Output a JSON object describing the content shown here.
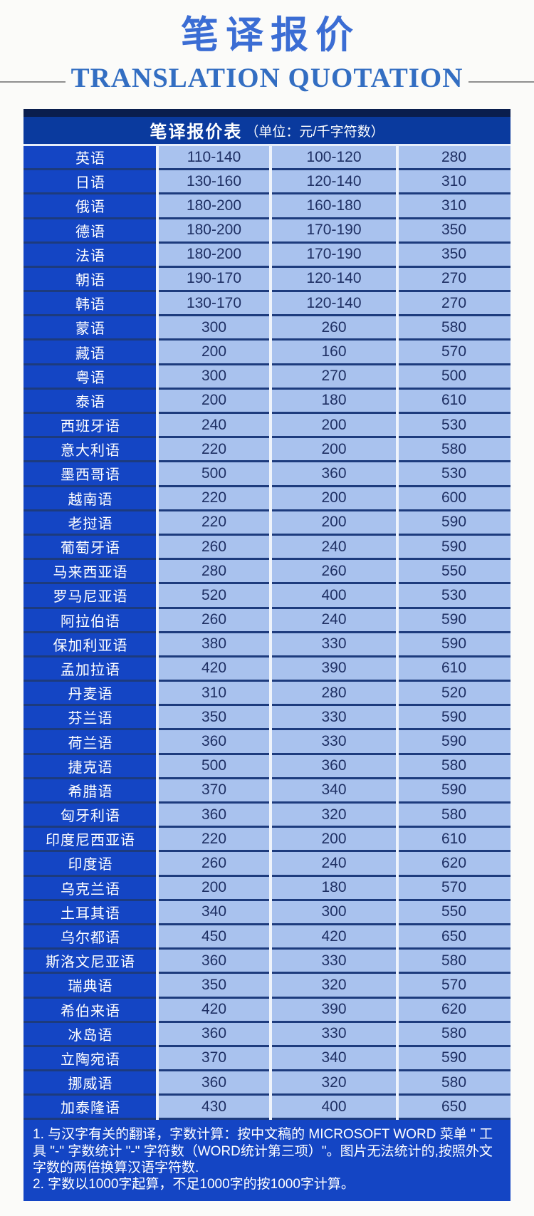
{
  "header": {
    "title": "笔译报价",
    "subtitle": "TRANSLATION QUOTATION"
  },
  "table": {
    "title": "笔译报价表",
    "unit": "（单位：元/千字符数）",
    "rows": [
      {
        "language": "英语",
        "prices": [
          "110-140",
          "100-120",
          "280"
        ]
      },
      {
        "language": "日语",
        "prices": [
          "130-160",
          "120-140",
          "310"
        ]
      },
      {
        "language": "俄语",
        "prices": [
          "180-200",
          "160-180",
          "310"
        ]
      },
      {
        "language": "德语",
        "prices": [
          "180-200",
          "170-190",
          "350"
        ]
      },
      {
        "language": "法语",
        "prices": [
          "180-200",
          "170-190",
          "350"
        ]
      },
      {
        "language": "朝语",
        "prices": [
          "190-170",
          "120-140",
          "270"
        ]
      },
      {
        "language": "韩语",
        "prices": [
          "130-170",
          "120-140",
          "270"
        ]
      },
      {
        "language": "蒙语",
        "prices": [
          "300",
          "260",
          "580"
        ]
      },
      {
        "language": "藏语",
        "prices": [
          "200",
          "160",
          "570"
        ]
      },
      {
        "language": "粤语",
        "prices": [
          "300",
          "270",
          "500"
        ]
      },
      {
        "language": "泰语",
        "prices": [
          "200",
          "180",
          "610"
        ]
      },
      {
        "language": "西班牙语",
        "prices": [
          "240",
          "200",
          "530"
        ]
      },
      {
        "language": "意大利语",
        "prices": [
          "220",
          "200",
          "580"
        ]
      },
      {
        "language": "墨西哥语",
        "prices": [
          "500",
          "360",
          "530"
        ]
      },
      {
        "language": "越南语",
        "prices": [
          "220",
          "200",
          "600"
        ]
      },
      {
        "language": "老挝语",
        "prices": [
          "220",
          "200",
          "590"
        ]
      },
      {
        "language": "葡萄牙语",
        "prices": [
          "260",
          "240",
          "590"
        ]
      },
      {
        "language": "马来西亚语",
        "prices": [
          "280",
          "260",
          "550"
        ]
      },
      {
        "language": "罗马尼亚语",
        "prices": [
          "520",
          "400",
          "530"
        ]
      },
      {
        "language": "阿拉伯语",
        "prices": [
          "260",
          "240",
          "590"
        ]
      },
      {
        "language": "保加利亚语",
        "prices": [
          "380",
          "330",
          "590"
        ]
      },
      {
        "language": "孟加拉语",
        "prices": [
          "420",
          "390",
          "610"
        ]
      },
      {
        "language": "丹麦语",
        "prices": [
          "310",
          "280",
          "520"
        ]
      },
      {
        "language": "芬兰语",
        "prices": [
          "350",
          "330",
          "590"
        ]
      },
      {
        "language": "荷兰语",
        "prices": [
          "360",
          "330",
          "590"
        ]
      },
      {
        "language": "捷克语",
        "prices": [
          "500",
          "360",
          "580"
        ]
      },
      {
        "language": "希腊语",
        "prices": [
          "370",
          "340",
          "590"
        ]
      },
      {
        "language": "匈牙利语",
        "prices": [
          "360",
          "320",
          "580"
        ]
      },
      {
        "language": "印度尼西亚语",
        "prices": [
          "220",
          "200",
          "610"
        ]
      },
      {
        "language": "印度语",
        "prices": [
          "260",
          "240",
          "620"
        ]
      },
      {
        "language": "乌克兰语",
        "prices": [
          "200",
          "180",
          "570"
        ]
      },
      {
        "language": "土耳其语",
        "prices": [
          "340",
          "300",
          "550"
        ]
      },
      {
        "language": "乌尔都语",
        "prices": [
          "450",
          "420",
          "650"
        ]
      },
      {
        "language": "斯洛文尼亚语",
        "prices": [
          "360",
          "330",
          "580"
        ]
      },
      {
        "language": "瑞典语",
        "prices": [
          "350",
          "320",
          "570"
        ]
      },
      {
        "language": "希伯来语",
        "prices": [
          "420",
          "390",
          "620"
        ]
      },
      {
        "language": "冰岛语",
        "prices": [
          "360",
          "330",
          "580"
        ]
      },
      {
        "language": "立陶宛语",
        "prices": [
          "370",
          "340",
          "590"
        ]
      },
      {
        "language": "挪威语",
        "prices": [
          "360",
          "320",
          "580"
        ]
      },
      {
        "language": "加泰隆语",
        "prices": [
          "430",
          "400",
          "650"
        ]
      }
    ]
  },
  "notes": [
    "1. 与汉字有关的翻译，字数计算：按中文稿的 MICROSOFT WORD 菜单 \" 工具 \"-\" 字数统计 \"-\" 字符数（WORD统计第三项）\"。图片无法统计的,按照外文字数的两倍换算汉语字符数.",
    "2. 字数以1000字起算，不足1000字的按1000字计算。"
  ],
  "colors": {
    "title_blue": "#3b6dd4",
    "subtitle_blue": "#336ec2",
    "header_navy": "#0a3a9e",
    "header_top": "#0a1e4e",
    "language_blue": "#1445c4",
    "cell_blue": "#a9c2ee",
    "cell_text": "#1e2f63",
    "row_divider": "#1d3b7d",
    "column_divider": "#eef3fb",
    "rule_gray": "#8f8f8f"
  }
}
